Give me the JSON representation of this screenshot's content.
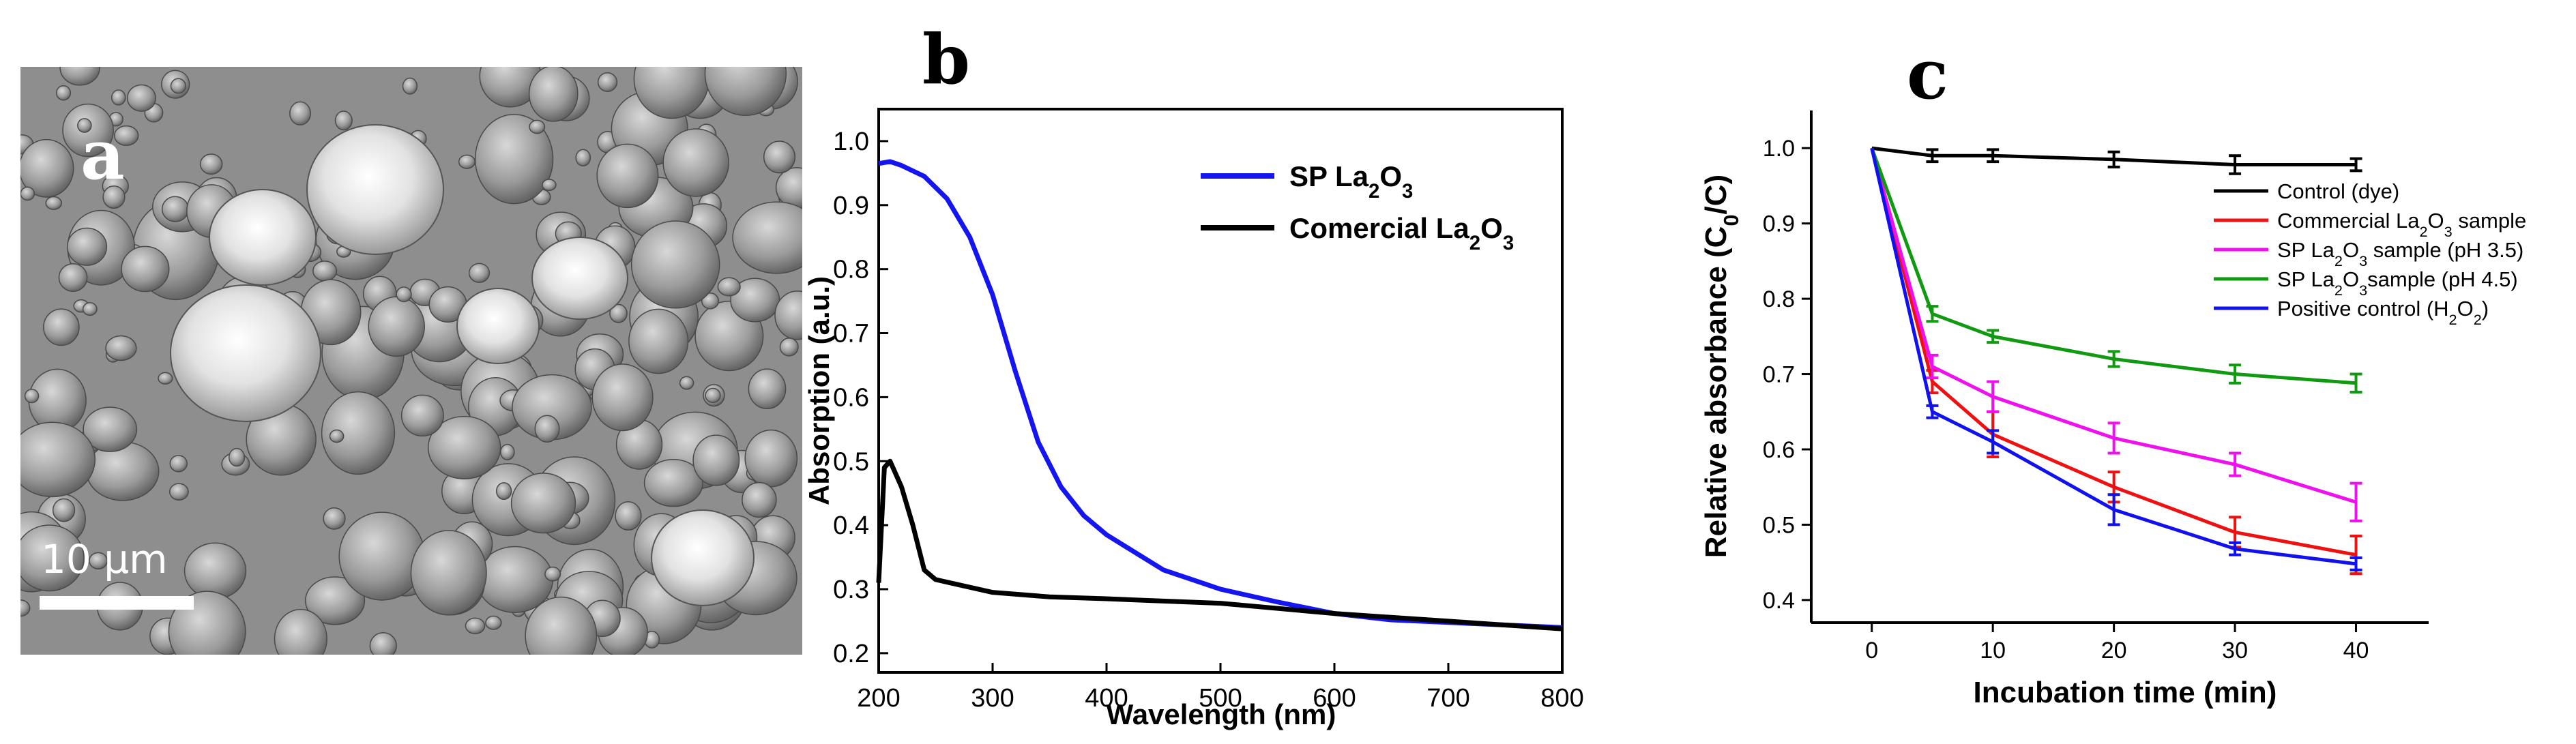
{
  "panel_a": {
    "label": "a",
    "scale_bar_label": "10 μm"
  },
  "panel_b": {
    "label": "b"
  },
  "panel_c": {
    "label": "c"
  },
  "chart_data": [
    {
      "type": "line",
      "panel": "b",
      "xlabel": "Wavelength (nm)",
      "ylabel": "Absorption (a.u.)",
      "xlim": [
        200,
        800
      ],
      "ylim": [
        0.17,
        1.05
      ],
      "xticks": [
        200,
        300,
        400,
        500,
        600,
        700,
        800
      ],
      "yticks": [
        0.2,
        0.3,
        0.4,
        0.5,
        0.6,
        0.7,
        0.8,
        0.9,
        1.0
      ],
      "legend_position": "top-right",
      "series": [
        {
          "name": "SP La2O3",
          "color": "#1515f0",
          "x": [
            200,
            210,
            220,
            240,
            260,
            280,
            300,
            320,
            340,
            360,
            380,
            400,
            450,
            500,
            550,
            600,
            650,
            700,
            750,
            800
          ],
          "y": [
            0.965,
            0.968,
            0.962,
            0.945,
            0.91,
            0.85,
            0.76,
            0.64,
            0.53,
            0.46,
            0.415,
            0.385,
            0.33,
            0.3,
            0.28,
            0.262,
            0.252,
            0.248,
            0.244,
            0.24
          ]
        },
        {
          "name": "Comercial La2O3",
          "color": "#000000",
          "x": [
            200,
            205,
            210,
            220,
            230,
            240,
            250,
            275,
            300,
            350,
            400,
            500,
            600,
            700,
            800
          ],
          "y": [
            0.31,
            0.49,
            0.5,
            0.46,
            0.4,
            0.33,
            0.315,
            0.305,
            0.295,
            0.288,
            0.285,
            0.278,
            0.262,
            0.25,
            0.238
          ]
        }
      ]
    },
    {
      "type": "line",
      "panel": "c",
      "xlabel": "Incubation time (min)",
      "ylabel": "Relative absorbance (C0/C)",
      "xlim": [
        -5,
        46
      ],
      "ylim": [
        0.37,
        1.05
      ],
      "xticks": [
        0,
        10,
        20,
        30,
        40
      ],
      "yticks": [
        0.4,
        0.5,
        0.6,
        0.7,
        0.8,
        0.9,
        1.0
      ],
      "x": [
        0,
        5,
        10,
        20,
        30,
        40
      ],
      "legend_position": "right",
      "series": [
        {
          "name": "Control (dye)",
          "color": "#000000",
          "values": [
            1.0,
            0.99,
            0.99,
            0.985,
            0.978,
            0.978
          ],
          "errors": [
            0,
            0.008,
            0.008,
            0.01,
            0.012,
            0.008
          ]
        },
        {
          "name": "Commercial La2O3 sample",
          "color": "#ee1111",
          "values": [
            1.0,
            0.69,
            0.62,
            0.55,
            0.49,
            0.46
          ],
          "errors": [
            0,
            0.015,
            0.03,
            0.02,
            0.02,
            0.025
          ]
        },
        {
          "name": "SP La2O3 sample (pH 3.5)",
          "color": "#ee11ee",
          "values": [
            1.0,
            0.71,
            0.67,
            0.615,
            0.58,
            0.53
          ],
          "errors": [
            0,
            0.015,
            0.02,
            0.02,
            0.015,
            0.025
          ]
        },
        {
          "name": "SP La2O3sample (pH 4.5)",
          "color": "#119911",
          "values": [
            1.0,
            0.78,
            0.75,
            0.72,
            0.7,
            0.688
          ],
          "errors": [
            0,
            0.01,
            0.008,
            0.01,
            0.012,
            0.012
          ]
        },
        {
          "name": "Positive control (H2O2)",
          "color": "#1111ee",
          "values": [
            1.0,
            0.65,
            0.61,
            0.52,
            0.468,
            0.448
          ],
          "errors": [
            0,
            0.008,
            0.015,
            0.02,
            0.008,
            0.008
          ]
        }
      ]
    }
  ]
}
